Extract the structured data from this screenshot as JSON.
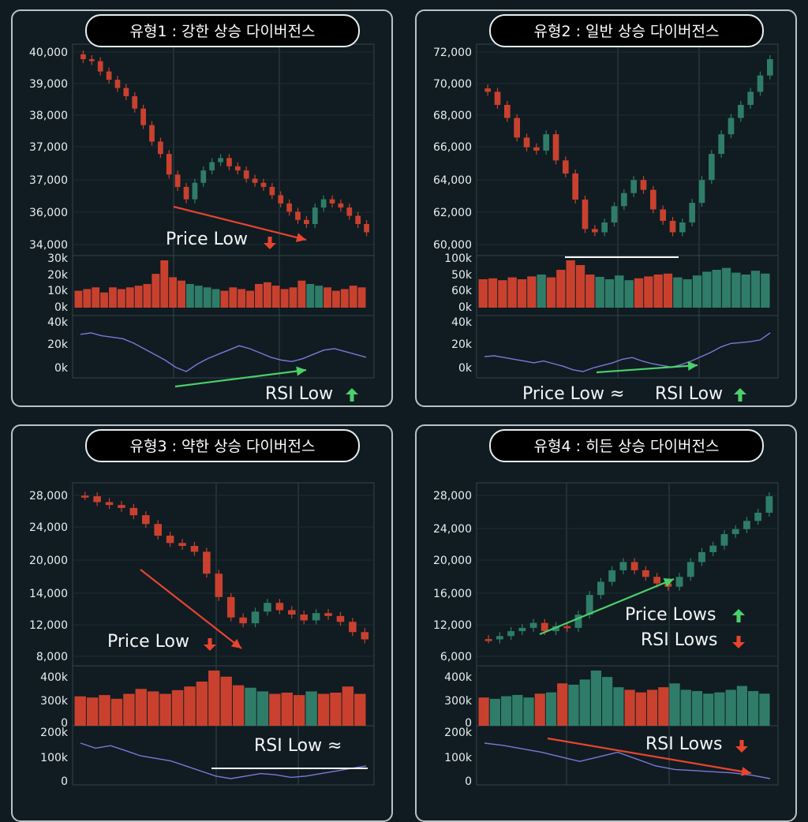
{
  "colors": {
    "up": "#2f7d68",
    "down": "#c9412e",
    "rsi_line": "#7c78d8",
    "arrow_up": "#4bd06a",
    "arrow_down": "#e8442e",
    "background": "#0f1b21",
    "grid": "#33434a"
  },
  "chart_data": [
    {
      "type": "candlestick",
      "title": "유형1 : 강한 상승 다이버전스",
      "price_ticks": [
        "40,000",
        "39,000",
        "38,000",
        "37,000",
        "37,000",
        "36,000",
        "34,000"
      ],
      "volume_ticks": [
        "30k",
        "20k",
        "10k",
        "0k"
      ],
      "rsi_ticks": [
        "40k",
        "20k",
        "0k"
      ],
      "close_path": [
        39200,
        39150,
        38900,
        38700,
        38500,
        38300,
        38000,
        37600,
        37200,
        36900,
        36400,
        36100,
        35800,
        36200,
        36500,
        36700,
        36800,
        36600,
        36500,
        36300,
        36200,
        36100,
        35900,
        35700,
        35500,
        35300,
        35200,
        35600,
        35800,
        35700,
        35600,
        35400,
        35200,
        35000
      ],
      "volume_level": [
        10,
        11,
        12,
        9,
        12,
        11,
        12,
        13,
        14,
        20,
        28,
        18,
        16,
        14,
        13,
        12,
        11,
        10,
        12,
        11,
        10,
        14,
        15,
        13,
        11,
        12,
        16,
        14,
        13,
        12,
        10,
        11,
        13,
        12
      ],
      "rsi_values": [
        26,
        27,
        25,
        24,
        23,
        20,
        16,
        12,
        8,
        3,
        0,
        5,
        9,
        12,
        15,
        18,
        16,
        13,
        10,
        8,
        7,
        9,
        12,
        15,
        16,
        14,
        12,
        10
      ],
      "annotations": {
        "price_label": "Price Low",
        "price_arrow": "down",
        "rsi_label": "RSI Low",
        "rsi_arrow": "up"
      }
    },
    {
      "type": "candlestick",
      "title": "유형2 : 일반 상승 다이버전스",
      "price_ticks": [
        "72,000",
        "70,000",
        "68,000",
        "66,000",
        "64,000",
        "62,000",
        "60,000"
      ],
      "volume_ticks": [
        "100k",
        "50k",
        "60k",
        "0k"
      ],
      "rsi_ticks": [
        "40k",
        "20k",
        "0k"
      ],
      "close_path": [
        69200,
        68400,
        67600,
        66400,
        65800,
        65600,
        66600,
        65000,
        64200,
        62600,
        60800,
        60600,
        61200,
        62200,
        63000,
        63800,
        63200,
        62000,
        61300,
        60600,
        61200,
        62400,
        63800,
        65400,
        66600,
        67600,
        68400,
        69200,
        70200,
        71200
      ],
      "volume_level": [
        60,
        62,
        58,
        64,
        60,
        66,
        70,
        64,
        80,
        100,
        90,
        70,
        65,
        60,
        68,
        58,
        62,
        66,
        70,
        72,
        64,
        60,
        68,
        76,
        80,
        84,
        74,
        70,
        78,
        72
      ],
      "rsi_values": [
        15,
        16,
        14,
        12,
        10,
        8,
        10,
        7,
        4,
        0,
        -2,
        2,
        5,
        8,
        12,
        14,
        10,
        7,
        5,
        3,
        6,
        10,
        15,
        20,
        26,
        30,
        31,
        32,
        34,
        42
      ],
      "annotations": {
        "price_label": "Price Low ≈",
        "rsi_label": "RSI Low",
        "rsi_arrow": "up"
      }
    },
    {
      "type": "candlestick",
      "title": "유형3 : 약한 상승 다이버전스",
      "price_ticks": [
        "28,000",
        "24,000",
        "20,000",
        "14,000",
        "12,000",
        "8,000"
      ],
      "volume_ticks": [
        "400k",
        "300k",
        "0"
      ],
      "rsi_ticks": [
        "200k",
        "100k",
        "0"
      ],
      "close_path": [
        28200,
        27400,
        27000,
        26600,
        25600,
        24400,
        22800,
        21800,
        21400,
        20600,
        17600,
        14400,
        11600,
        10800,
        12400,
        13600,
        12600,
        12000,
        11200,
        12200,
        11800,
        11000,
        9600,
        8600
      ],
      "volume_level": [
        240,
        230,
        250,
        220,
        260,
        300,
        280,
        260,
        290,
        320,
        360,
        450,
        400,
        330,
        310,
        280,
        260,
        270,
        250,
        280,
        260,
        270,
        320,
        260
      ],
      "rsi_values": [
        210,
        190,
        200,
        180,
        160,
        150,
        140,
        120,
        100,
        80,
        70,
        80,
        90,
        85,
        75,
        80,
        90,
        100,
        110,
        120
      ],
      "annotations": {
        "price_label": "Price Low",
        "price_arrow": "down",
        "rsi_label": "RSI Low ≈"
      }
    },
    {
      "type": "candlestick",
      "title": "유형4 : 히든 상승 다이버전스",
      "price_ticks": [
        "28,000",
        "24,000",
        "20,000",
        "16,000",
        "12,000",
        "6,000"
      ],
      "volume_ticks": [
        "400k",
        "300k",
        "0"
      ],
      "rsi_ticks": [
        "200k",
        "100k",
        "0"
      ],
      "close_path": [
        12200,
        12600,
        13200,
        13600,
        14200,
        13200,
        13800,
        13600,
        15200,
        17600,
        19200,
        20600,
        21600,
        20600,
        19800,
        19000,
        18600,
        19800,
        21600,
        22800,
        23600,
        25000,
        25600,
        26600,
        27600,
        29600
      ],
      "volume_level": [
        220,
        210,
        230,
        240,
        220,
        250,
        260,
        330,
        320,
        360,
        430,
        380,
        300,
        280,
        260,
        280,
        300,
        330,
        280,
        270,
        250,
        260,
        280,
        310,
        270,
        250
      ],
      "rsi_values": [
        200,
        190,
        175,
        160,
        140,
        120,
        140,
        160,
        130,
        100,
        85,
        80,
        75,
        70,
        60,
        45
      ],
      "annotations": {
        "price_label": "Price Lows",
        "price_arrow": "up",
        "rsi_label_1": "RSI Lows",
        "rsi_label_2": "RSI Lows",
        "rsi_arrow": "down"
      }
    }
  ]
}
